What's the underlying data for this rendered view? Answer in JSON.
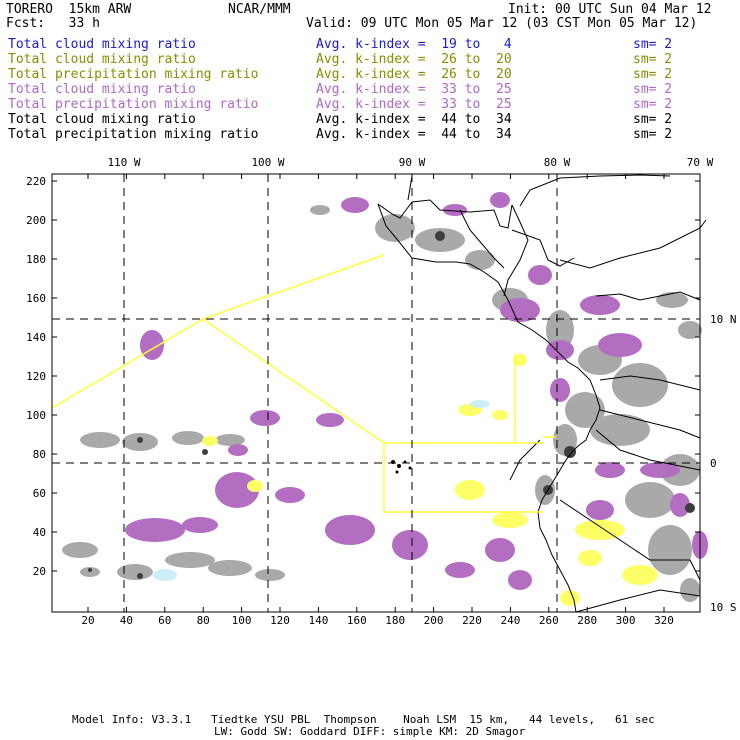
{
  "header": {
    "model": "TORERO  15km ARW",
    "center": "NCAR/MMM",
    "init": "Init: 00 UTC Sun 04 Mar 12",
    "fcst": "Fcst:   33 h",
    "valid": "Valid: 09 UTC Mon 05 Mar 12 (03 CST Mon 05 Mar 12)"
  },
  "legend": [
    {
      "field": "Total cloud mixing ratio",
      "kindex": "Avg. k-index =  19 to   4",
      "sm": "sm= 2",
      "color": "#1a1acc"
    },
    {
      "field": "Total cloud mixing ratio",
      "kindex": "Avg. k-index =  26 to  20",
      "sm": "sm= 2",
      "color": "#8c8c00"
    },
    {
      "field": "Total precipitation mixing ratio",
      "kindex": "Avg. k-index =  26 to  20",
      "sm": "sm= 2",
      "color": "#8c8c00"
    },
    {
      "field": "Total cloud mixing ratio",
      "kindex": "Avg. k-index =  33 to  25",
      "sm": "sm= 2",
      "color": "#b266c8"
    },
    {
      "field": "Total precipitation mixing ratio",
      "kindex": "Avg. k-index =  33 to  25",
      "sm": "sm= 2",
      "color": "#b266c8"
    },
    {
      "field": "Total cloud mixing ratio",
      "kindex": "Avg. k-index =  44 to  34",
      "sm": "sm= 2",
      "color": "#000000"
    },
    {
      "field": "Total precipitation mixing ratio",
      "kindex": "Avg. k-index =  44 to  34",
      "sm": "sm= 2",
      "color": "#000000"
    }
  ],
  "map": {
    "top_lon_labels": [
      "110 W",
      "100 W",
      "90 W",
      "80 W",
      "70 W"
    ],
    "right_lat_labels": [
      "10 N",
      "0",
      "10 S"
    ],
    "y_ticks": [
      "220",
      "200",
      "180",
      "160",
      "140",
      "120",
      "100",
      "80",
      "60",
      "40",
      "20"
    ],
    "x_ticks": [
      "20",
      "40",
      "60",
      "80",
      "100",
      "120",
      "140",
      "160",
      "180",
      "200",
      "220",
      "240",
      "260",
      "280",
      "300",
      "320"
    ],
    "colors": {
      "cloud_gray": "#a9a9a9",
      "cloud_dark": "#3c3c3c",
      "precip_purple": "#b36ec2",
      "precip_yellow": "#ffff66",
      "light_blue": "#cdeef8",
      "nest_outline": "#ffff33",
      "coastline": "#000000"
    }
  },
  "footer": {
    "line1": "Model Info: V3.3.1   Tiedtke YSU PBL  Thompson    Noah LSM  15 km,   44 levels,   61 sec",
    "line2": "LW: Godd SW: Goddard DIFF: simple KM: 2D Smagor"
  }
}
